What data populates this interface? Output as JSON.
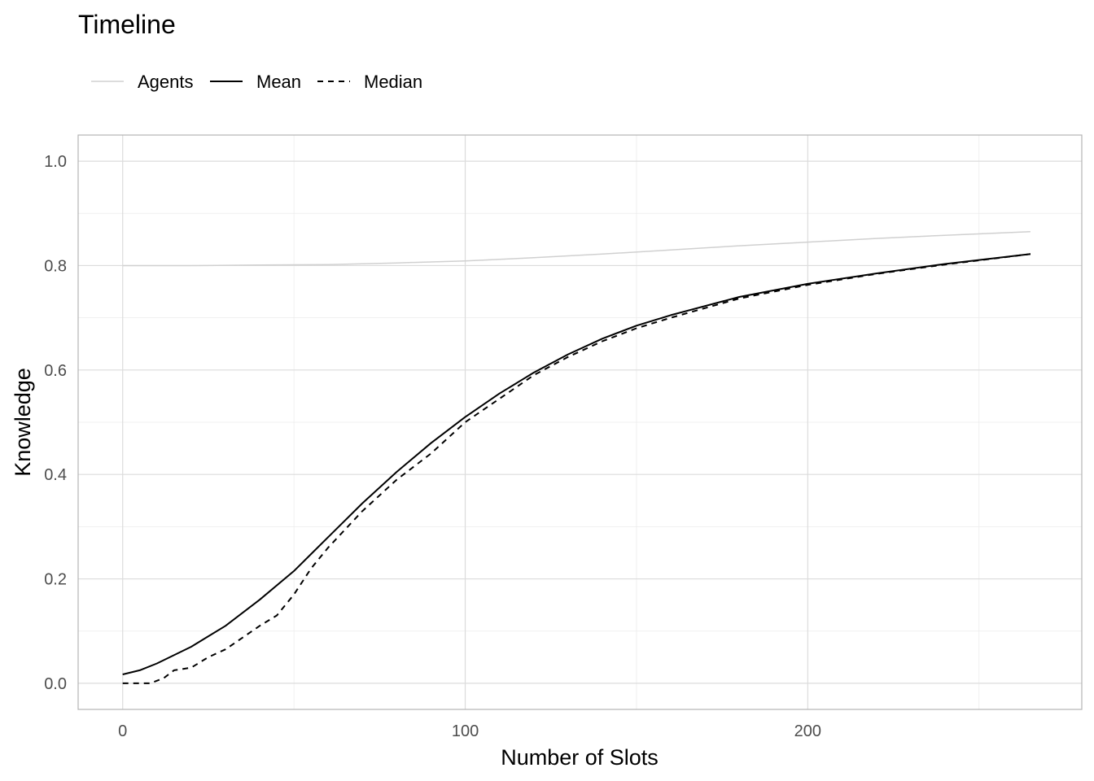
{
  "chart_data": {
    "type": "line",
    "title": "Timeline",
    "xlabel": "Number of Slots",
    "ylabel": "Knowledge",
    "xlim": [
      -13,
      280
    ],
    "ylim": [
      -0.05,
      1.05
    ],
    "x_ticks": [
      0,
      100,
      200
    ],
    "x_tick_labels": [
      "0",
      "100",
      "200"
    ],
    "y_ticks": [
      0.0,
      0.2,
      0.4,
      0.6,
      0.8,
      1.0
    ],
    "y_tick_labels": [
      "0.0",
      "0.2",
      "0.4",
      "0.6",
      "0.8",
      "1.0"
    ],
    "grid": true,
    "legend": {
      "position": "top-left",
      "entries": [
        {
          "label": "Agents",
          "color": "#d0d0d0",
          "dash": "solid"
        },
        {
          "label": "Mean",
          "color": "#000000",
          "dash": "solid"
        },
        {
          "label": "Median",
          "color": "#000000",
          "dash": "dashed"
        }
      ]
    },
    "series": [
      {
        "name": "Mean",
        "style": "solid",
        "color": "#000000",
        "x": [
          0,
          5,
          10,
          20,
          30,
          40,
          50,
          60,
          70,
          80,
          90,
          100,
          110,
          120,
          130,
          140,
          150,
          160,
          180,
          200,
          220,
          240,
          265
        ],
        "y": [
          0.017,
          0.025,
          0.038,
          0.07,
          0.11,
          0.16,
          0.215,
          0.28,
          0.345,
          0.405,
          0.46,
          0.51,
          0.555,
          0.595,
          0.63,
          0.66,
          0.685,
          0.705,
          0.74,
          0.765,
          0.785,
          0.803,
          0.822
        ]
      },
      {
        "name": "Median",
        "style": "dashed",
        "color": "#000000",
        "x": [
          0,
          8,
          12,
          15,
          20,
          25,
          30,
          40,
          45,
          50,
          55,
          60,
          70,
          80,
          90,
          100,
          110,
          120,
          130,
          140,
          150,
          160,
          180,
          200,
          220,
          240,
          265
        ],
        "y": [
          0.0,
          0.0,
          0.01,
          0.025,
          0.03,
          0.05,
          0.065,
          0.11,
          0.13,
          0.17,
          0.22,
          0.26,
          0.33,
          0.39,
          0.44,
          0.5,
          0.545,
          0.59,
          0.625,
          0.655,
          0.68,
          0.7,
          0.737,
          0.763,
          0.784,
          0.802,
          0.822
        ]
      },
      {
        "name": "Agents",
        "style": "solid",
        "color": "#d0d0d0",
        "x": [
          0,
          20,
          40,
          60,
          80,
          100,
          120,
          140,
          160,
          180,
          200,
          220,
          240,
          265
        ],
        "y": [
          0.8,
          0.8,
          0.801,
          0.802,
          0.805,
          0.809,
          0.815,
          0.822,
          0.83,
          0.838,
          0.845,
          0.852,
          0.858,
          0.865
        ]
      }
    ]
  }
}
